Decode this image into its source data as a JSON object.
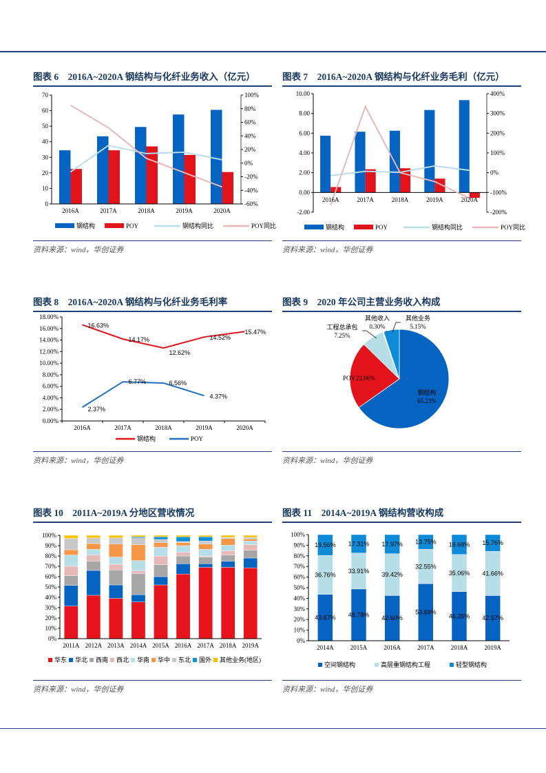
{
  "colors": {
    "rule": "#1f3f7a",
    "title": "#17375e",
    "blue": "#0563c1",
    "red": "#e3131b",
    "light_blue": "#b7dee8",
    "pink": "#e6b8b7"
  },
  "panels": [
    {
      "title": "图表 6　2016A~2020A 钢结构与化纤业务收入（亿元）",
      "source": "资料来源：wind，华创证券"
    },
    {
      "title": "图表 7　2016A~2020A 钢结构与化纤业务毛利（亿元）",
      "source": "资料来源：wind，华创证券"
    },
    {
      "title": "图表 8　2016A~2020A 钢结构与化纤业务毛利率",
      "source": "资料来源：wind，华创证券"
    },
    {
      "title": "图表 9　2020 年公司主营业务收入构成",
      "source": "资料来源：wind，华创证券"
    },
    {
      "title": "图表 10　2011A~2019A 分地区营收情况",
      "source": "资料来源：wind，华创证券"
    },
    {
      "title": "图表 11　2014A~2019A 钢结构营收构成",
      "source": "资料来源：wind，华创证券"
    }
  ],
  "chart_data": [
    {
      "type": "bar+line",
      "categories": [
        "2016A",
        "2017A",
        "2018A",
        "2019A",
        "2020A"
      ],
      "y_left": {
        "range": [
          0,
          70
        ],
        "ticks": [
          "0",
          "10",
          "20",
          "30",
          "40",
          "50",
          "60",
          "70"
        ]
      },
      "y_right": {
        "range": [
          -60,
          100
        ],
        "ticks": [
          "-60%",
          "-40%",
          "-20%",
          "0%",
          "20%",
          "40%",
          "60%",
          "80%",
          "100%"
        ]
      },
      "series": [
        {
          "name": "钢结构",
          "kind": "bar",
          "axis": "left",
          "color": "#0563c1",
          "values": [
            34.5,
            43.5,
            49.5,
            57.5,
            60.5
          ]
        },
        {
          "name": "POY",
          "kind": "bar",
          "axis": "left",
          "color": "#e3131b",
          "values": [
            22.5,
            34.5,
            37,
            31.5,
            20.5
          ]
        },
        {
          "name": "钢结构同比",
          "kind": "line",
          "axis": "right",
          "color": "#b7dee8",
          "values": [
            -13,
            26,
            14,
            16,
            5
          ]
        },
        {
          "name": "POY同比",
          "kind": "line",
          "axis": "right",
          "color": "#e6b8b7",
          "values": [
            85,
            52,
            7,
            -14,
            -35
          ]
        }
      ],
      "legend": "bottom"
    },
    {
      "type": "bar+line",
      "categories": [
        "2016A",
        "2017A",
        "2018A",
        "2019A",
        "2020A"
      ],
      "y_left": {
        "range": [
          -2,
          10
        ],
        "ticks": [
          "-2.00",
          "0.00",
          "2.00",
          "4.00",
          "6.00",
          "8.00",
          "10.00"
        ]
      },
      "y_right": {
        "range": [
          -200,
          400
        ],
        "ticks": [
          "-200%",
          "-100%",
          "0%",
          "100%",
          "200%",
          "300%",
          "400%"
        ]
      },
      "series": [
        {
          "name": "钢结构",
          "kind": "bar",
          "axis": "left",
          "color": "#0563c1",
          "values": [
            5.75,
            6.15,
            6.25,
            8.35,
            9.35
          ]
        },
        {
          "name": "POY",
          "kind": "bar",
          "axis": "left",
          "color": "#e3131b",
          "values": [
            0.55,
            2.35,
            2.45,
            1.4,
            -0.55
          ]
        },
        {
          "name": "钢结构同比",
          "kind": "line",
          "axis": "right",
          "color": "#b7dee8",
          "values": [
            -15,
            7,
            2,
            34,
            12
          ]
        },
        {
          "name": "POY同比",
          "kind": "line",
          "axis": "right",
          "color": "#e6b8b7",
          "values": [
            -165,
            335,
            0,
            -45,
            -130
          ]
        }
      ],
      "legend": "bottom"
    },
    {
      "type": "line",
      "categories": [
        "2016A",
        "2017A",
        "2018A",
        "2019A",
        "2020A"
      ],
      "y": {
        "range": [
          0,
          18
        ],
        "ticks": [
          "0.00%",
          "2.00%",
          "4.00%",
          "6.00%",
          "8.00%",
          "10.00%",
          "12.00%",
          "14.00%",
          "16.00%",
          "18.00%"
        ]
      },
      "series": [
        {
          "name": "钢结构",
          "color": "#e3131b",
          "values": [
            16.63,
            14.17,
            12.62,
            14.52,
            15.47
          ],
          "labels": [
            "16.63%",
            "14.17%",
            "12.62%",
            "14.52%",
            "15.47%"
          ]
        },
        {
          "name": "POY",
          "color": "#1f6fc0",
          "values": [
            2.37,
            6.77,
            6.56,
            4.37,
            null
          ],
          "labels": [
            "2.37%",
            "6.77%",
            "6.56%",
            "4.37%",
            null
          ]
        }
      ],
      "legend": "bottom"
    },
    {
      "type": "pie",
      "slices": [
        {
          "name": "钢结构",
          "value": 65.23,
          "label": "65.23%",
          "color": "#0563c1"
        },
        {
          "name": "POY",
          "value": 22.06,
          "label": "22.06%",
          "color": "#e3131b"
        },
        {
          "name": "工程总承包",
          "value": 7.25,
          "label": "7.25%",
          "color": "#b7dee8"
        },
        {
          "name": "其他收入",
          "value": 0.3,
          "label": "0.30%",
          "color": "#e6b8b7"
        },
        {
          "name": "其他业务",
          "value": 5.15,
          "label": "5.15%",
          "color": "#0d8ad8"
        }
      ]
    },
    {
      "type": "bar",
      "stacked": true,
      "categories": [
        "2011A",
        "2012A",
        "2013A",
        "2014A",
        "2015A",
        "2016A",
        "2017A",
        "2018A",
        "2019A"
      ],
      "y": {
        "range": [
          0,
          100
        ],
        "ticks": [
          "0%",
          "10%",
          "20%",
          "30%",
          "40%",
          "50%",
          "60%",
          "70%",
          "80%",
          "90%",
          "100%"
        ]
      },
      "series": [
        {
          "name": "华东",
          "color": "#e8141c",
          "values": [
            31.5,
            42,
            39,
            35.5,
            52,
            62.5,
            69,
            69,
            68.5
          ]
        },
        {
          "name": "华北",
          "color": "#0563c1",
          "values": [
            20,
            24,
            13,
            7,
            8,
            10,
            3.5,
            6,
            9.5
          ]
        },
        {
          "name": "西南",
          "color": "#a6a6a6",
          "values": [
            9.5,
            9,
            14.5,
            20.5,
            11.5,
            7.5,
            6.5,
            6,
            7.5
          ]
        },
        {
          "name": "西北",
          "color": "#e6b9b8",
          "values": [
            9,
            6,
            5.5,
            2.5,
            8.5,
            3.5,
            1,
            4,
            5.5
          ]
        },
        {
          "name": "华南",
          "color": "#b7dee8",
          "values": [
            11,
            5.5,
            7,
            10,
            8.5,
            6.5,
            6.5,
            5.5,
            3.5
          ]
        },
        {
          "name": "华中",
          "color": "#f79646",
          "values": [
            5,
            5.5,
            12.5,
            15.5,
            4.5,
            3,
            5,
            6.5,
            2
          ]
        },
        {
          "name": "东北",
          "color": "#c8c8c8",
          "values": [
            11,
            5.5,
            6,
            6.5,
            3,
            1,
            3,
            0.5,
            1
          ]
        },
        {
          "name": "国外",
          "color": "#0a8fd8",
          "values": [
            0,
            0,
            0,
            1,
            2.5,
            4.5,
            4,
            0.5,
            0.5
          ]
        },
        {
          "name": "其他业务(地区)",
          "color": "#ffc000",
          "values": [
            3,
            2.5,
            2.5,
            1.5,
            1.5,
            1.5,
            1.5,
            2,
            2
          ]
        }
      ],
      "legend": "bottom"
    },
    {
      "type": "bar",
      "stacked": true,
      "categories": [
        "2014A",
        "2015A",
        "2016A",
        "2017A",
        "2018A",
        "2019A"
      ],
      "y": {
        "range": [
          0,
          100
        ],
        "ticks": [
          "0%",
          "10%",
          "20%",
          "30%",
          "40%",
          "50%",
          "60%",
          "70%",
          "80%",
          "90%",
          "100%"
        ]
      },
      "series": [
        {
          "name": "空间钢结构",
          "color": "#0563c1",
          "values": [
            43.67,
            48.78,
            42.6,
            53.69,
            46.26,
            42.57
          ],
          "labels": [
            "43.67%",
            "48.78%",
            "42.60%",
            "53.69%",
            "46.26%",
            "42.57%"
          ]
        },
        {
          "name": "高层重钢结构工程",
          "color": "#b7dee8",
          "values": [
            36.76,
            33.91,
            39.42,
            32.55,
            35.06,
            41.66
          ],
          "labels": [
            "36.76%",
            "33.91%",
            "39.42%",
            "32.55%",
            "35.06%",
            "41.66%"
          ]
        },
        {
          "name": "轻型钢结构",
          "color": "#0d8ad8",
          "values": [
            19.56,
            17.31,
            17.97,
            13.75,
            18.68,
            15.76
          ],
          "labels": [
            "19.56%",
            "17.31%",
            "17.97%",
            "13.75%",
            "18.68%",
            "15.76%"
          ]
        }
      ],
      "legend": "bottom"
    }
  ]
}
